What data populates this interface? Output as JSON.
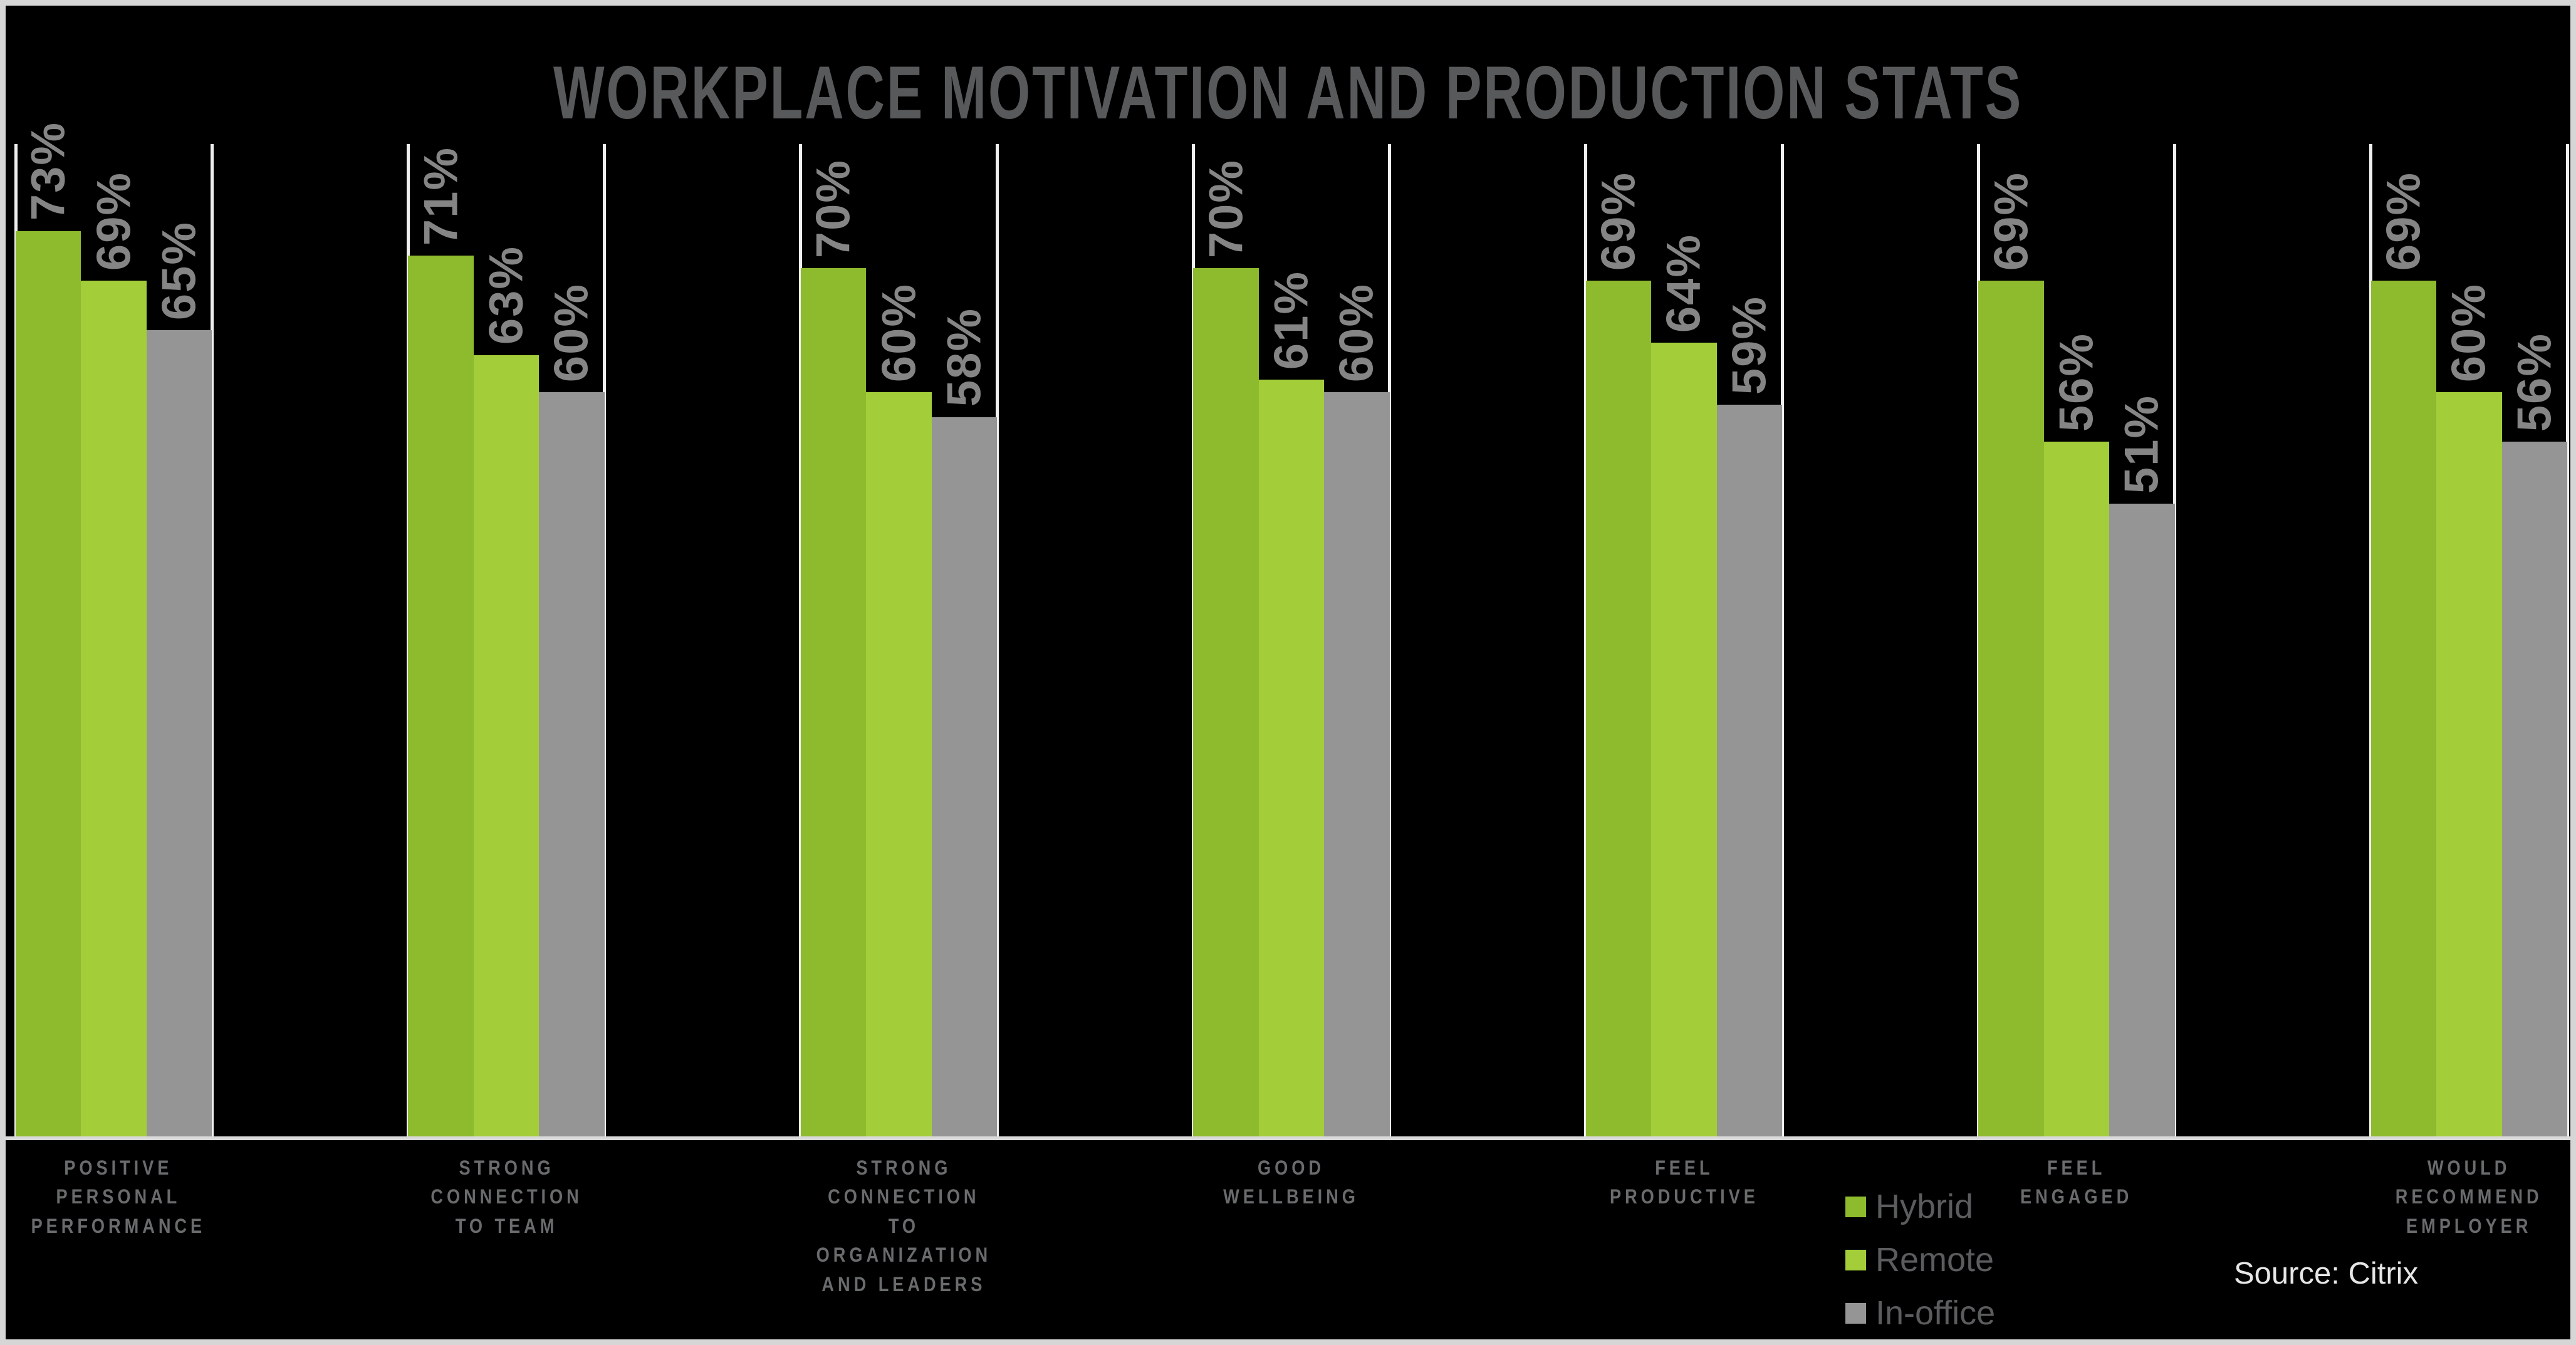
{
  "title": "WORKPLACE MOTIVATION AND PRODUCTION STATS",
  "source": "Source: Citrix",
  "colors": {
    "background": "#000000",
    "frame_border": "#D6D6D6",
    "gridline": "#EFEFEF",
    "baseline": "#D9D9D9",
    "title_text": "#58595B",
    "value_label": "#858585",
    "category_label": "#696B6D",
    "legend_label": "#5B5C5E",
    "source_text": "#E6E6E6",
    "hybrid_green": "#8EBB2D",
    "remote_green": "#A3CE39",
    "in_office_gray": "#959595"
  },
  "chart_data": {
    "type": "bar",
    "title": "WORKPLACE MOTIVATION AND PRODUCTION STATS",
    "categories": [
      "POSITIVE\nPERSONAL\nPERFORMANCE",
      "STRONG\nCONNECTION\nTO TEAM",
      "STRONG\nCONNECTION\nTO\nORGANIZATION\nAND LEADERS",
      "GOOD\nWELLBEING",
      "FEEL\nPRODUCTIVE",
      "FEEL ENGAGED",
      "WOULD\nRECOMMEND\nEMPLOYER"
    ],
    "series": [
      {
        "name": "Hybrid",
        "color": "#8EBB2D",
        "values": [
          73,
          71,
          70,
          70,
          69,
          69,
          69
        ]
      },
      {
        "name": "Remote",
        "color": "#A3CE39",
        "values": [
          69,
          63,
          60,
          61,
          64,
          56,
          60
        ]
      },
      {
        "name": "In-office",
        "color": "#959595",
        "values": [
          65,
          60,
          58,
          60,
          59,
          51,
          56
        ]
      }
    ],
    "value_suffix": "%",
    "xlabel": "",
    "ylabel": "",
    "ylim": [
      0,
      80
    ],
    "grid": "vertical-column-dividers-only",
    "value_labels": "rotated-90-above-bars",
    "legend_position": "bottom-right"
  }
}
